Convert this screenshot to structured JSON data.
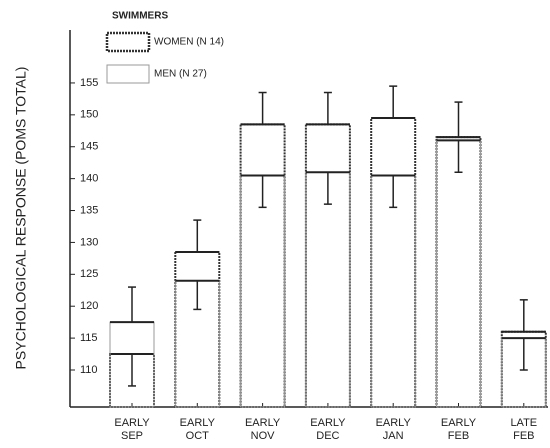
{
  "chart_data": {
    "type": "floating-bar",
    "legend_title": "SWIMMERS",
    "ylabel": "PSYCHOLOGICAL RESPONSE (POMS TOTAL)",
    "categories": [
      "EARLY SEP",
      "EARLY OCT",
      "EARLY NOV",
      "EARLY DEC",
      "EARLY JAN",
      "EARLY FEB",
      "LATE FEB"
    ],
    "series": [
      {
        "name": "WOMEN (N 14)",
        "color": "#333333",
        "values": [
          112.5,
          128.5,
          148.5,
          148.5,
          149.5,
          146.5,
          116
        ],
        "errors": [
          5,
          5,
          5,
          5,
          5,
          5.5,
          5
        ]
      },
      {
        "name": "MEN (N 27)",
        "color": "#999999",
        "values": [
          117.5,
          124,
          140.5,
          141,
          140.5,
          146,
          115
        ],
        "errors": [
          5.5,
          4.5,
          5,
          5,
          5,
          5,
          5
        ]
      }
    ],
    "ylim": [
      104.2,
      163.3
    ],
    "yticks": [
      110,
      115,
      120,
      125,
      130,
      135,
      140,
      145,
      150,
      155
    ]
  }
}
